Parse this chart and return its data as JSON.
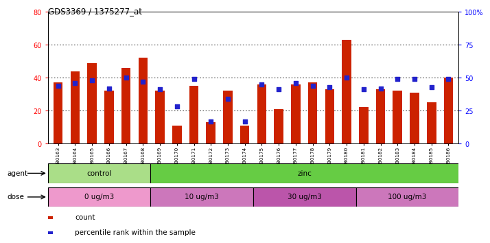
{
  "title": "GDS3369 / 1375277_at",
  "samples": [
    "GSM280163",
    "GSM280164",
    "GSM280165",
    "GSM280166",
    "GSM280167",
    "GSM280168",
    "GSM280169",
    "GSM280170",
    "GSM280171",
    "GSM280172",
    "GSM280173",
    "GSM280174",
    "GSM280175",
    "GSM280176",
    "GSM280177",
    "GSM280178",
    "GSM280179",
    "GSM280180",
    "GSM280181",
    "GSM280182",
    "GSM280183",
    "GSM280184",
    "GSM280185",
    "GSM280186"
  ],
  "count": [
    37,
    44,
    49,
    32,
    46,
    52,
    32,
    11,
    35,
    13,
    32,
    11,
    36,
    21,
    36,
    37,
    33,
    63,
    22,
    33,
    32,
    31,
    25,
    40
  ],
  "percentile": [
    44,
    46,
    48,
    42,
    50,
    47,
    41,
    28,
    49,
    17,
    34,
    17,
    45,
    41,
    46,
    44,
    43,
    50,
    41,
    42,
    49,
    49,
    43,
    49
  ],
  "bar_color": "#cc2200",
  "dot_color": "#2222cc",
  "left_ylim": [
    0,
    80
  ],
  "right_ylim": [
    0,
    100
  ],
  "left_yticks": [
    0,
    20,
    40,
    60,
    80
  ],
  "right_yticks": [
    0,
    25,
    50,
    75,
    100
  ],
  "right_yticklabels": [
    "0",
    "25",
    "50",
    "75",
    "100%"
  ],
  "agent_groups": [
    {
      "label": "control",
      "start": 0,
      "end": 6,
      "color": "#aade88"
    },
    {
      "label": "zinc",
      "start": 6,
      "end": 24,
      "color": "#66cc44"
    }
  ],
  "dose_groups": [
    {
      "label": "0 ug/m3",
      "start": 0,
      "end": 6,
      "color": "#ee99cc"
    },
    {
      "label": "10 ug/m3",
      "start": 6,
      "end": 12,
      "color": "#cc77bb"
    },
    {
      "label": "30 ug/m3",
      "start": 12,
      "end": 18,
      "color": "#bb55aa"
    },
    {
      "label": "100 ug/m3",
      "start": 18,
      "end": 24,
      "color": "#cc77bb"
    }
  ],
  "legend_count_label": "count",
  "legend_pct_label": "percentile rank within the sample",
  "agent_label": "agent",
  "dose_label": "dose"
}
